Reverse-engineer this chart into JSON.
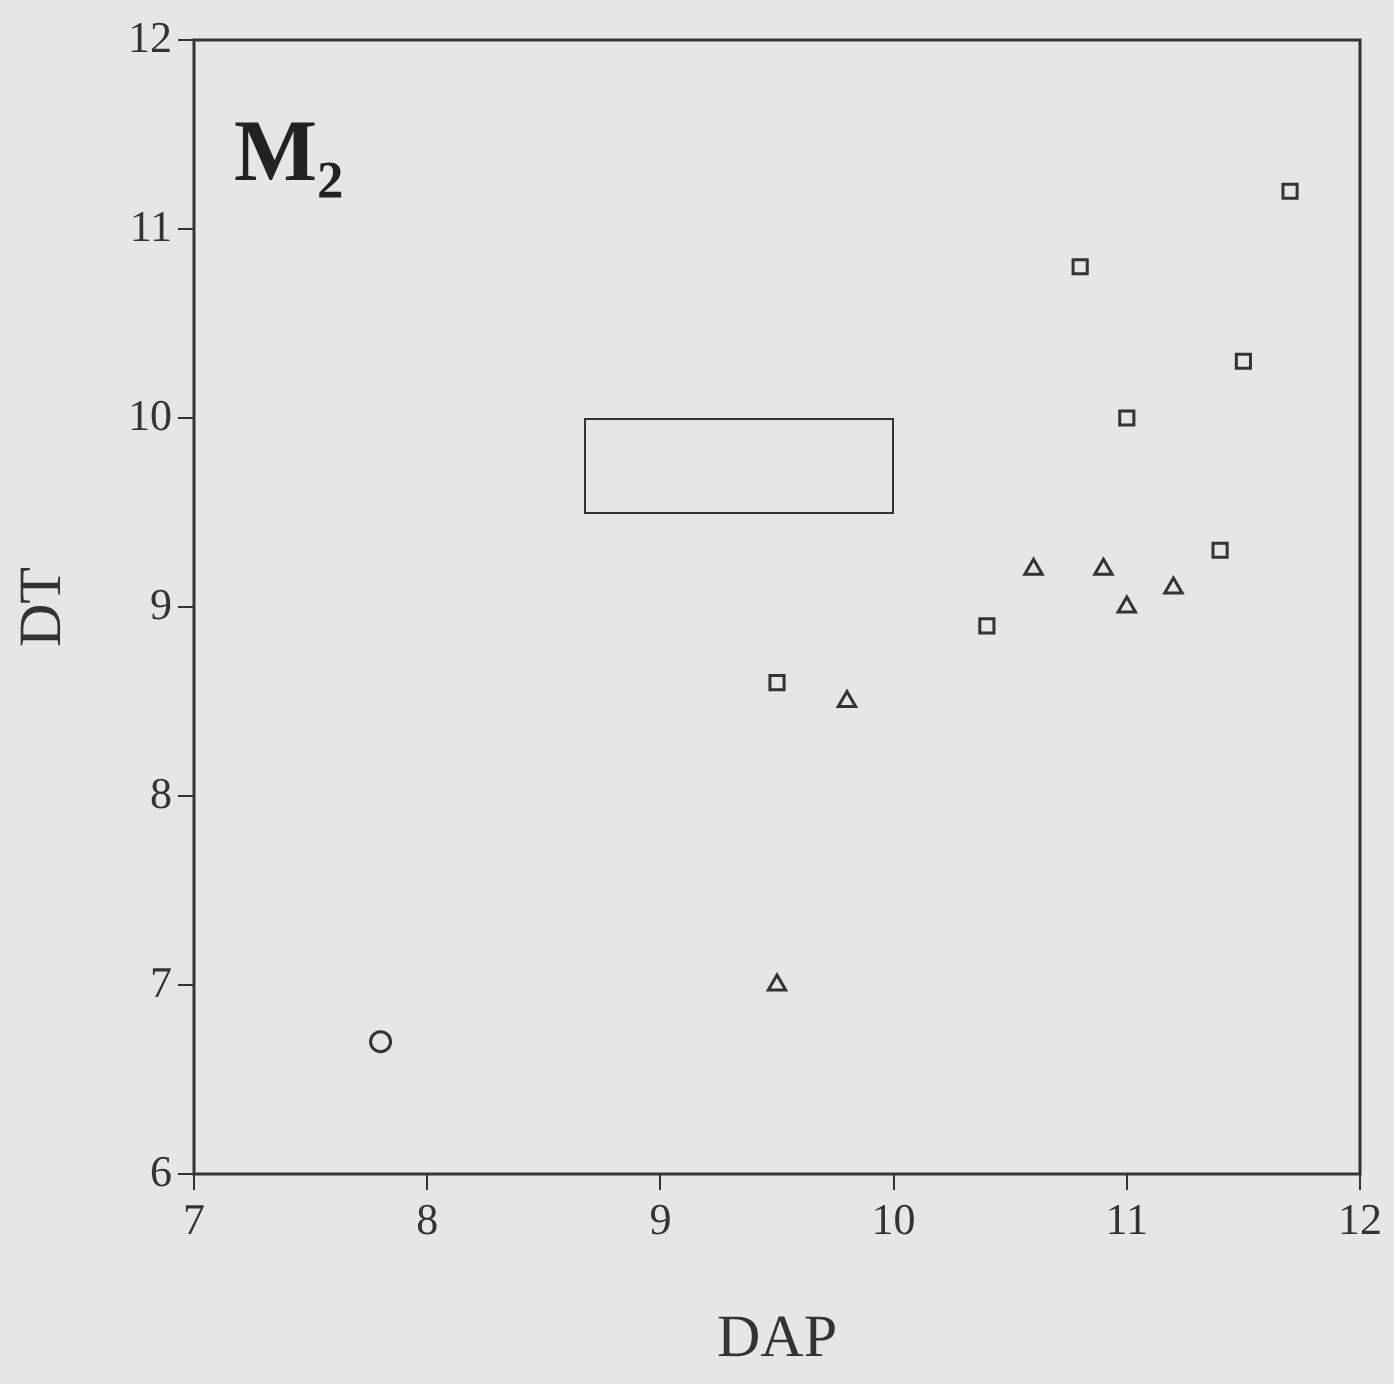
{
  "chart_data": {
    "type": "scatter",
    "xlabel": "DAP",
    "ylabel": "DT",
    "annotations": [
      "M₂"
    ],
    "xlim": [
      7,
      12
    ],
    "xticks": [
      7,
      8,
      9,
      10,
      11,
      12
    ],
    "ylim": [
      6,
      12
    ],
    "yticks": [
      6,
      7,
      8,
      9,
      10,
      11,
      12
    ],
    "grid": false,
    "legend": false,
    "series": [
      {
        "color": "#333333",
        "marker": "square",
        "x": [
          9.5,
          10.4,
          10.8,
          11,
          11.4,
          11.5,
          11.7
        ],
        "values": [
          8.6,
          8.9,
          10.8,
          10,
          9.3,
          10.3,
          11.2
        ]
      },
      {
        "color": "#333333",
        "marker": "triangle",
        "x": [
          9.5,
          9.8,
          10.6,
          10.9,
          11,
          11.2
        ],
        "values": [
          7,
          8.5,
          9.2,
          9.2,
          9,
          9.1
        ]
      },
      {
        "color": "#333333",
        "marker": "circle",
        "x": [
          7.8
        ],
        "values": [
          6.7
        ]
      }
    ]
  }
}
